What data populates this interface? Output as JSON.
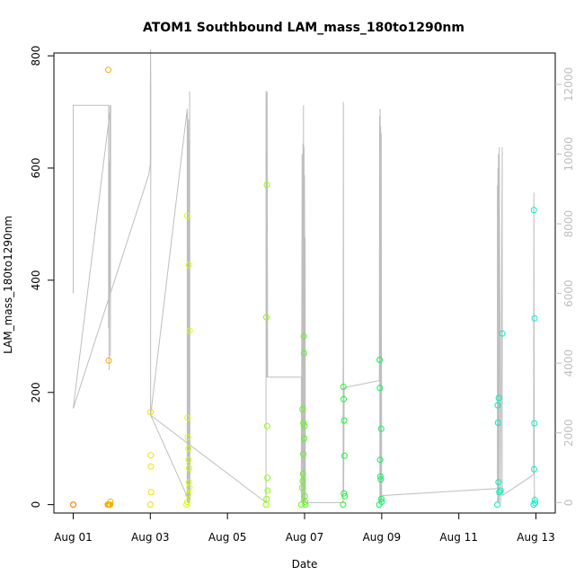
{
  "chart_data": {
    "type": "scatter",
    "title": "ATOM1 Southbound LAM_mass_180to1290nm",
    "xlabel": "Date",
    "ylabel": "LAM_mass_180to1290nm",
    "x_ticks": [
      "Aug 01",
      "Aug 03",
      "Aug 05",
      "Aug 07",
      "Aug 09",
      "Aug 11",
      "Aug 13"
    ],
    "y_ticks": [
      "0",
      "200",
      "400",
      "600",
      "800"
    ],
    "y2_ticks": [
      "0",
      "2000",
      "4000",
      "6000",
      "8000",
      "10000",
      "12000"
    ],
    "xlim": [
      "2013-07-31T12:00",
      "2013-08-13T12:00"
    ],
    "ylim": [
      -15,
      805
    ],
    "y2lim": [
      -300,
      12900
    ],
    "grid": false,
    "legend": "none",
    "series": [
      {
        "marker": "open-circle",
        "color_scale": "orange-yellow-green-cyan by time",
        "points": [
          [
            "2013-08-01T00:00",
            0
          ],
          [
            "2013-08-01T00:00",
            0
          ],
          [
            "2013-08-01T21:30",
            0
          ],
          [
            "2013-08-01T22:00",
            0
          ],
          [
            "2013-08-01T22:30",
            0
          ],
          [
            "2013-08-01T23:00",
            0
          ],
          [
            "2013-08-01T21:50",
            775
          ],
          [
            "2013-08-01T22:10",
            257
          ],
          [
            "2013-08-01T23:10",
            5
          ],
          [
            "2013-08-03T00:00",
            0
          ],
          [
            "2013-08-03T00:10",
            165
          ],
          [
            "2013-08-03T00:15",
            88
          ],
          [
            "2013-08-03T00:20",
            68
          ],
          [
            "2013-08-03T00:25",
            22
          ],
          [
            "2013-08-03T22:30",
            0
          ],
          [
            "2013-08-03T23:00",
            5
          ],
          [
            "2013-08-03T23:30",
            18
          ],
          [
            "2013-08-04T00:00",
            40
          ],
          [
            "2013-08-03T23:00",
            515
          ],
          [
            "2013-08-04T00:00",
            427
          ],
          [
            "2013-08-04T00:30",
            310
          ],
          [
            "2013-08-03T23:10",
            155
          ],
          [
            "2013-08-03T23:20",
            120
          ],
          [
            "2013-08-03T23:40",
            100
          ],
          [
            "2013-08-03T23:50",
            80
          ],
          [
            "2013-08-04T00:10",
            65
          ],
          [
            "2013-08-04T00:20",
            30
          ],
          [
            "2013-08-06T00:00",
            0
          ],
          [
            "2013-08-06T00:10",
            334
          ],
          [
            "2013-08-06T00:30",
            570
          ],
          [
            "2013-08-06T00:40",
            140
          ],
          [
            "2013-08-06T00:50",
            48
          ],
          [
            "2013-08-06T01:00",
            25
          ],
          [
            "2013-08-06T00:20",
            10
          ],
          [
            "2013-08-06T22:00",
            0
          ],
          [
            "2013-08-06T22:30",
            30
          ],
          [
            "2013-08-06T23:00",
            55
          ],
          [
            "2013-08-06T23:10",
            90
          ],
          [
            "2013-08-06T23:20",
            145
          ],
          [
            "2013-08-06T23:30",
            300
          ],
          [
            "2013-08-06T23:40",
            270
          ],
          [
            "2013-08-06T23:50",
            118
          ],
          [
            "2013-08-07T00:00",
            140
          ],
          [
            "2013-08-07T00:10",
            15
          ],
          [
            "2013-08-07T00:20",
            5
          ],
          [
            "2013-08-06T22:40",
            170
          ],
          [
            "2013-08-06T22:50",
            42
          ],
          [
            "2013-08-07T00:30",
            0
          ],
          [
            "2013-08-08T00:00",
            0
          ],
          [
            "2013-08-08T00:10",
            210
          ],
          [
            "2013-08-08T00:20",
            188
          ],
          [
            "2013-08-08T00:40",
            150
          ],
          [
            "2013-08-08T00:50",
            87
          ],
          [
            "2013-08-08T00:30",
            20
          ],
          [
            "2013-08-08T01:00",
            15
          ],
          [
            "2013-08-08T22:30",
            0
          ],
          [
            "2013-08-08T22:40",
            258
          ],
          [
            "2013-08-08T22:50",
            208
          ],
          [
            "2013-08-08T23:00",
            80
          ],
          [
            "2013-08-08T23:10",
            50
          ],
          [
            "2013-08-08T23:20",
            45
          ],
          [
            "2013-08-08T23:40",
            135
          ],
          [
            "2013-08-08T23:50",
            10
          ],
          [
            "2013-08-09T00:00",
            5
          ],
          [
            "2013-08-12T00:00",
            0
          ],
          [
            "2013-08-12T00:10",
            177
          ],
          [
            "2013-08-12T00:20",
            146
          ],
          [
            "2013-08-12T00:40",
            40
          ],
          [
            "2013-08-12T00:50",
            190
          ],
          [
            "2013-08-12T01:10",
            22
          ],
          [
            "2013-08-12T03:00",
            305
          ],
          [
            "2013-08-12T02:00",
            25
          ],
          [
            "2013-08-12T22:30",
            0
          ],
          [
            "2013-08-12T22:40",
            525
          ],
          [
            "2013-08-12T22:50",
            63
          ],
          [
            "2013-08-12T23:00",
            145
          ],
          [
            "2013-08-12T23:10",
            332
          ],
          [
            "2013-08-12T23:20",
            8
          ],
          [
            "2013-08-12T23:30",
            3
          ]
        ]
      },
      {
        "role": "right-axis trace",
        "color": "#bebebe",
        "line": [
          [
            "2013-08-01T00:00",
            6000
          ],
          [
            "2013-08-01T00:00",
            11400
          ],
          [
            "2013-08-01T22:00",
            11400
          ],
          [
            "2013-08-01T22:00",
            5000
          ],
          [
            "2013-08-01T22:10",
            9000
          ],
          [
            "2013-08-01T22:20",
            3800
          ],
          [
            "2013-08-01T22:30",
            9800
          ],
          [
            "2013-08-01T22:40",
            6000
          ],
          [
            "2013-08-01T22:50",
            11400
          ],
          [
            "2013-08-01T23:10",
            4200
          ],
          [
            "2013-08-01T23:20",
            11400
          ],
          [
            "2013-08-01T00:00",
            2700
          ],
          [
            "2013-08-02T23:00",
            9400
          ],
          [
            "2013-08-03T00:00",
            9700
          ],
          [
            "2013-08-03T00:00",
            12000
          ],
          [
            "2013-08-03T00:00",
            11600
          ],
          [
            "2013-08-03T00:10",
            13000
          ],
          [
            "2013-08-03T00:20",
            11800
          ],
          [
            "2013-08-03T00:10",
            2500
          ],
          [
            "2013-08-03T23:00",
            11300
          ],
          [
            "2013-08-03T23:00",
            0
          ],
          [
            "2013-08-03T23:10",
            11200
          ],
          [
            "2013-08-03T23:20",
            0
          ],
          [
            "2013-08-03T23:30",
            10800
          ],
          [
            "2013-08-03T23:40",
            0
          ],
          [
            "2013-08-03T23:50",
            11000
          ],
          [
            "2013-08-04T00:00",
            0
          ],
          [
            "2013-08-04T00:10",
            10400
          ],
          [
            "2013-08-04T00:20",
            0
          ],
          [
            "2013-08-04T00:30",
            11800
          ],
          [
            "2013-08-04T00:40",
            0
          ],
          [
            "2013-08-03T00:20",
            2500
          ],
          [
            "2013-08-06T00:00",
            0
          ],
          [
            "2013-08-06T00:00",
            11800
          ],
          [
            "2013-08-06T00:10",
            3600
          ],
          [
            "2013-08-06T00:20",
            11800
          ],
          [
            "2013-08-06T00:30",
            3600
          ],
          [
            "2013-08-06T00:40",
            11800
          ],
          [
            "2013-08-06T01:00",
            3600
          ],
          [
            "2013-08-06T22:00",
            3600
          ],
          [
            "2013-08-06T22:00",
            0
          ],
          [
            "2013-08-06T22:30",
            10000
          ],
          [
            "2013-08-06T22:40",
            0
          ],
          [
            "2013-08-06T23:00",
            10300
          ],
          [
            "2013-08-06T23:10",
            0
          ],
          [
            "2013-08-06T23:20",
            11400
          ],
          [
            "2013-08-06T23:30",
            0
          ],
          [
            "2013-08-06T23:40",
            10200
          ],
          [
            "2013-08-06T23:50",
            0
          ],
          [
            "2013-08-07T00:00",
            9400
          ],
          [
            "2013-08-07T00:10",
            0
          ],
          [
            "2013-08-07T00:20",
            7600
          ],
          [
            "2013-08-07T00:30",
            0
          ],
          [
            "2013-08-07T00:30",
            0
          ],
          [
            "2013-08-08T00:00",
            0
          ],
          [
            "2013-08-08T00:00",
            3300
          ],
          [
            "2013-08-08T00:10",
            11500
          ],
          [
            "2013-08-08T00:20",
            300
          ],
          [
            "2013-08-08T00:40",
            3300
          ],
          [
            "2013-08-08T22:30",
            3500
          ],
          [
            "2013-08-08T22:40",
            11100
          ],
          [
            "2013-08-08T22:50",
            100
          ],
          [
            "2013-08-08T23:00",
            11300
          ],
          [
            "2013-08-08T23:10",
            0
          ],
          [
            "2013-08-08T23:20",
            10800
          ],
          [
            "2013-08-08T23:30",
            0
          ],
          [
            "2013-08-08T23:40",
            10600
          ],
          [
            "2013-08-09T00:00",
            0
          ],
          [
            "2013-08-09T00:00",
            200
          ],
          [
            "2013-08-12T00:00",
            400
          ],
          [
            "2013-08-12T00:00",
            9100
          ],
          [
            "2013-08-12T00:10",
            0
          ],
          [
            "2013-08-12T00:20",
            9600
          ],
          [
            "2013-08-12T00:30",
            0
          ],
          [
            "2013-08-12T00:40",
            10000
          ],
          [
            "2013-08-12T01:00",
            0
          ],
          [
            "2013-08-12T01:10",
            10200
          ],
          [
            "2013-08-12T02:00",
            0
          ],
          [
            "2013-08-12T03:00",
            10200
          ],
          [
            "2013-08-12T03:00",
            200
          ],
          [
            "2013-08-12T22:30",
            800
          ],
          [
            "2013-08-12T22:40",
            8900
          ],
          [
            "2013-08-12T23:00",
            0
          ],
          [
            "2013-08-12T23:20",
            200
          ]
        ]
      }
    ]
  }
}
